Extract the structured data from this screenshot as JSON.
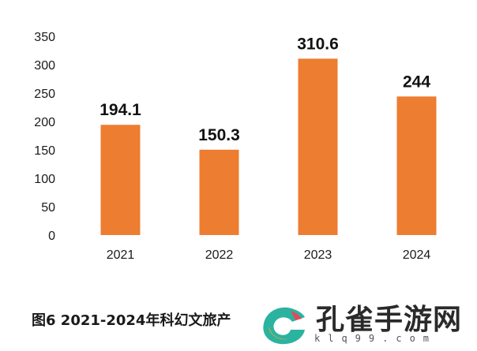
{
  "chart_data": {
    "type": "bar",
    "categories": [
      "2021",
      "2022",
      "2023",
      "2024"
    ],
    "values": [
      194.1,
      150.3,
      310.6,
      244
    ],
    "data_labels": [
      "194.1",
      "150.3",
      "310.6",
      "244"
    ],
    "yticks": [
      "0",
      "50",
      "100",
      "150",
      "200",
      "250",
      "300",
      "350"
    ],
    "ylim": [
      0,
      350
    ],
    "grid": false,
    "bar_color": "#ED7D31",
    "title": "",
    "xlabel": "",
    "ylabel": ""
  },
  "caption": "图6  2021-2024年科幻文旅产",
  "watermark": {
    "text": "孔雀手游网",
    "url": "klq99.com"
  }
}
